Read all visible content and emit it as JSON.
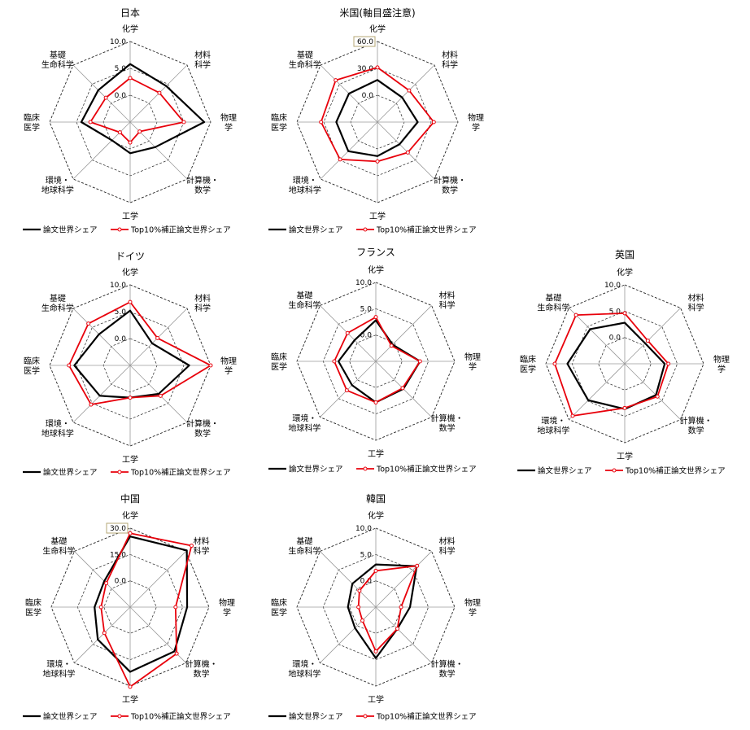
{
  "figure": {
    "legend": {
      "black": "論文世界シェア",
      "red": "Top10%補正論文世界シェア"
    },
    "colors": {
      "black": "#000000",
      "red": "#e8000b",
      "grid": "#222222",
      "spoke": "#9a9a9a",
      "highlight_box": "#b5a775"
    }
  },
  "chart_data": [
    {
      "type": "radar",
      "title": "日本",
      "categories": [
        "化学",
        "材料\n科学",
        "物理\n学",
        "計算機・\n数学",
        "工学",
        "環境・\n地球科学",
        "臨床\n医学",
        "基礎\n生命科学"
      ],
      "tick_labels": [
        "0.0",
        "5.0",
        "10.0"
      ],
      "tick_highlight": null,
      "rmin": -5,
      "rmax": 10,
      "series": [
        {
          "name": "論文世界シェア",
          "values": [
            5.8,
            4.5,
            8.8,
            1.6,
            0.8,
            -0.2,
            4.1,
            3.4
          ]
        },
        {
          "name": "Top10%補正論文世界シェア",
          "values": [
            3.2,
            2.7,
            5.0,
            -2.5,
            -1.2,
            -2.3,
            2.4,
            1.4
          ]
        }
      ]
    },
    {
      "type": "radar",
      "title": "米国(軸目盛注意)",
      "categories": [
        "化学",
        "材料\n科学",
        "物理\n学",
        "計算機・\n数学",
        "工学",
        "環境・\n地球科学",
        "臨床\n医学",
        "基礎\n生命科学"
      ],
      "tick_labels": [
        "0.0",
        "30.0",
        "60.0"
      ],
      "tick_highlight": "60.0",
      "rmin": -30,
      "rmax": 60,
      "series": [
        {
          "name": "論文世界シェア",
          "values": [
            17,
            9,
            15,
            5,
            8,
            16,
            16,
            15
          ]
        },
        {
          "name": "Top10%補正論文世界シェア",
          "values": [
            31,
            20,
            33,
            18,
            14,
            29,
            33,
            36
          ]
        }
      ]
    },
    {
      "type": "radar",
      "title": "ドイツ",
      "categories": [
        "化学",
        "材料\n科学",
        "物理\n学",
        "計算機・\n数学",
        "工学",
        "環境・\n地球科学",
        "臨床\n医学",
        "基礎\n生命科学"
      ],
      "tick_labels": [
        "0.0",
        "5.0",
        "10.0"
      ],
      "tick_highlight": null,
      "rmin": -5,
      "rmax": 10,
      "series": [
        {
          "name": "論文世界シェア",
          "values": [
            5.2,
            0.8,
            6.0,
            2.5,
            1.0,
            3.0,
            5.4,
            3.2
          ]
        },
        {
          "name": "Top10%補正論文世界シェア",
          "values": [
            6.8,
            2.2,
            10.0,
            3.0,
            1.0,
            5.3,
            6.4,
            6.0
          ]
        }
      ]
    },
    {
      "type": "radar",
      "title": "フランス",
      "categories": [
        "化学",
        "材料\n科学",
        "物理\n学",
        "計算機・\n数学",
        "工学",
        "環境・\n地球科学",
        "臨床\n医学",
        "基礎\n生命科学"
      ],
      "tick_labels": [
        "0.0",
        "5.0",
        "10.0"
      ],
      "tick_highlight": null,
      "rmin": -5,
      "rmax": 10,
      "series": [
        {
          "name": "論文世界シェア",
          "values": [
            2.8,
            -0.5,
            3.4,
            2.4,
            2.8,
            1.4,
            2.1,
            0.7
          ]
        },
        {
          "name": "Top10%補正論文世界シェア",
          "values": [
            3.4,
            -0.8,
            3.4,
            2.2,
            2.8,
            2.8,
            2.9,
            2.6
          ]
        }
      ]
    },
    {
      "type": "radar",
      "title": "英国",
      "categories": [
        "化学",
        "材料\n科学",
        "物理\n学",
        "計算機・\n数学",
        "工学",
        "環境・\n地球科学",
        "臨床\n医学",
        "基礎\n生命科学"
      ],
      "tick_labels": [
        "0.0",
        "5.0",
        "10.0"
      ],
      "tick_highlight": null,
      "rmin": -5,
      "rmax": 10,
      "series": [
        {
          "name": "論文世界シェア",
          "values": [
            2.8,
            0.5,
            2.6,
            3.4,
            3.6,
            4.8,
            5.9,
            4.3
          ]
        },
        {
          "name": "Top10%補正論文世界シェア",
          "values": [
            4.6,
            1.2,
            3.3,
            3.8,
            3.4,
            9.0,
            8.3,
            8.1
          ]
        }
      ]
    },
    {
      "type": "radar",
      "title": "中国",
      "categories": [
        "化学",
        "材料\n科学",
        "物理\n学",
        "計算機・\n数学",
        "工学",
        "環境・\n地球科学",
        "臨床\n医学",
        "基礎\n生命科学"
      ],
      "tick_labels": [
        "0.0",
        "15.0",
        "30.0"
      ],
      "tick_highlight": "30.0",
      "rmin": -15,
      "rmax": 30,
      "series": [
        {
          "name": "論文世界シェア",
          "values": [
            25.3,
            30.7,
            17.5,
            20.7,
            21.9,
            11.1,
            5.3,
            5.9
          ]
        },
        {
          "name": "Top10%補正論文世界シェア",
          "values": [
            27.1,
            34.5,
            10.9,
            22.5,
            30.4,
            5.8,
            1.6,
            4.3
          ]
        }
      ]
    },
    {
      "type": "radar",
      "title": "韓国",
      "categories": [
        "化学",
        "材料\n科学",
        "物理\n学",
        "計算機・\n数学",
        "工学",
        "環境・\n地球科学",
        "臨床\n医学",
        "基礎\n生命科学"
      ],
      "tick_labels": [
        "0.0",
        "5.0",
        "10.0"
      ],
      "tick_highlight": null,
      "rmin": -5,
      "rmax": 10,
      "series": [
        {
          "name": "論文世界シェア",
          "values": [
            3.1,
            6.0,
            1.5,
            0.8,
            4.7,
            0.6,
            0.3,
            1.3
          ]
        },
        {
          "name": "Top10%補正論文世界シェア",
          "values": [
            1.9,
            6.1,
            -0.2,
            0.8,
            3.4,
            -1.4,
            -1.7,
            -0.6
          ]
        }
      ]
    }
  ]
}
